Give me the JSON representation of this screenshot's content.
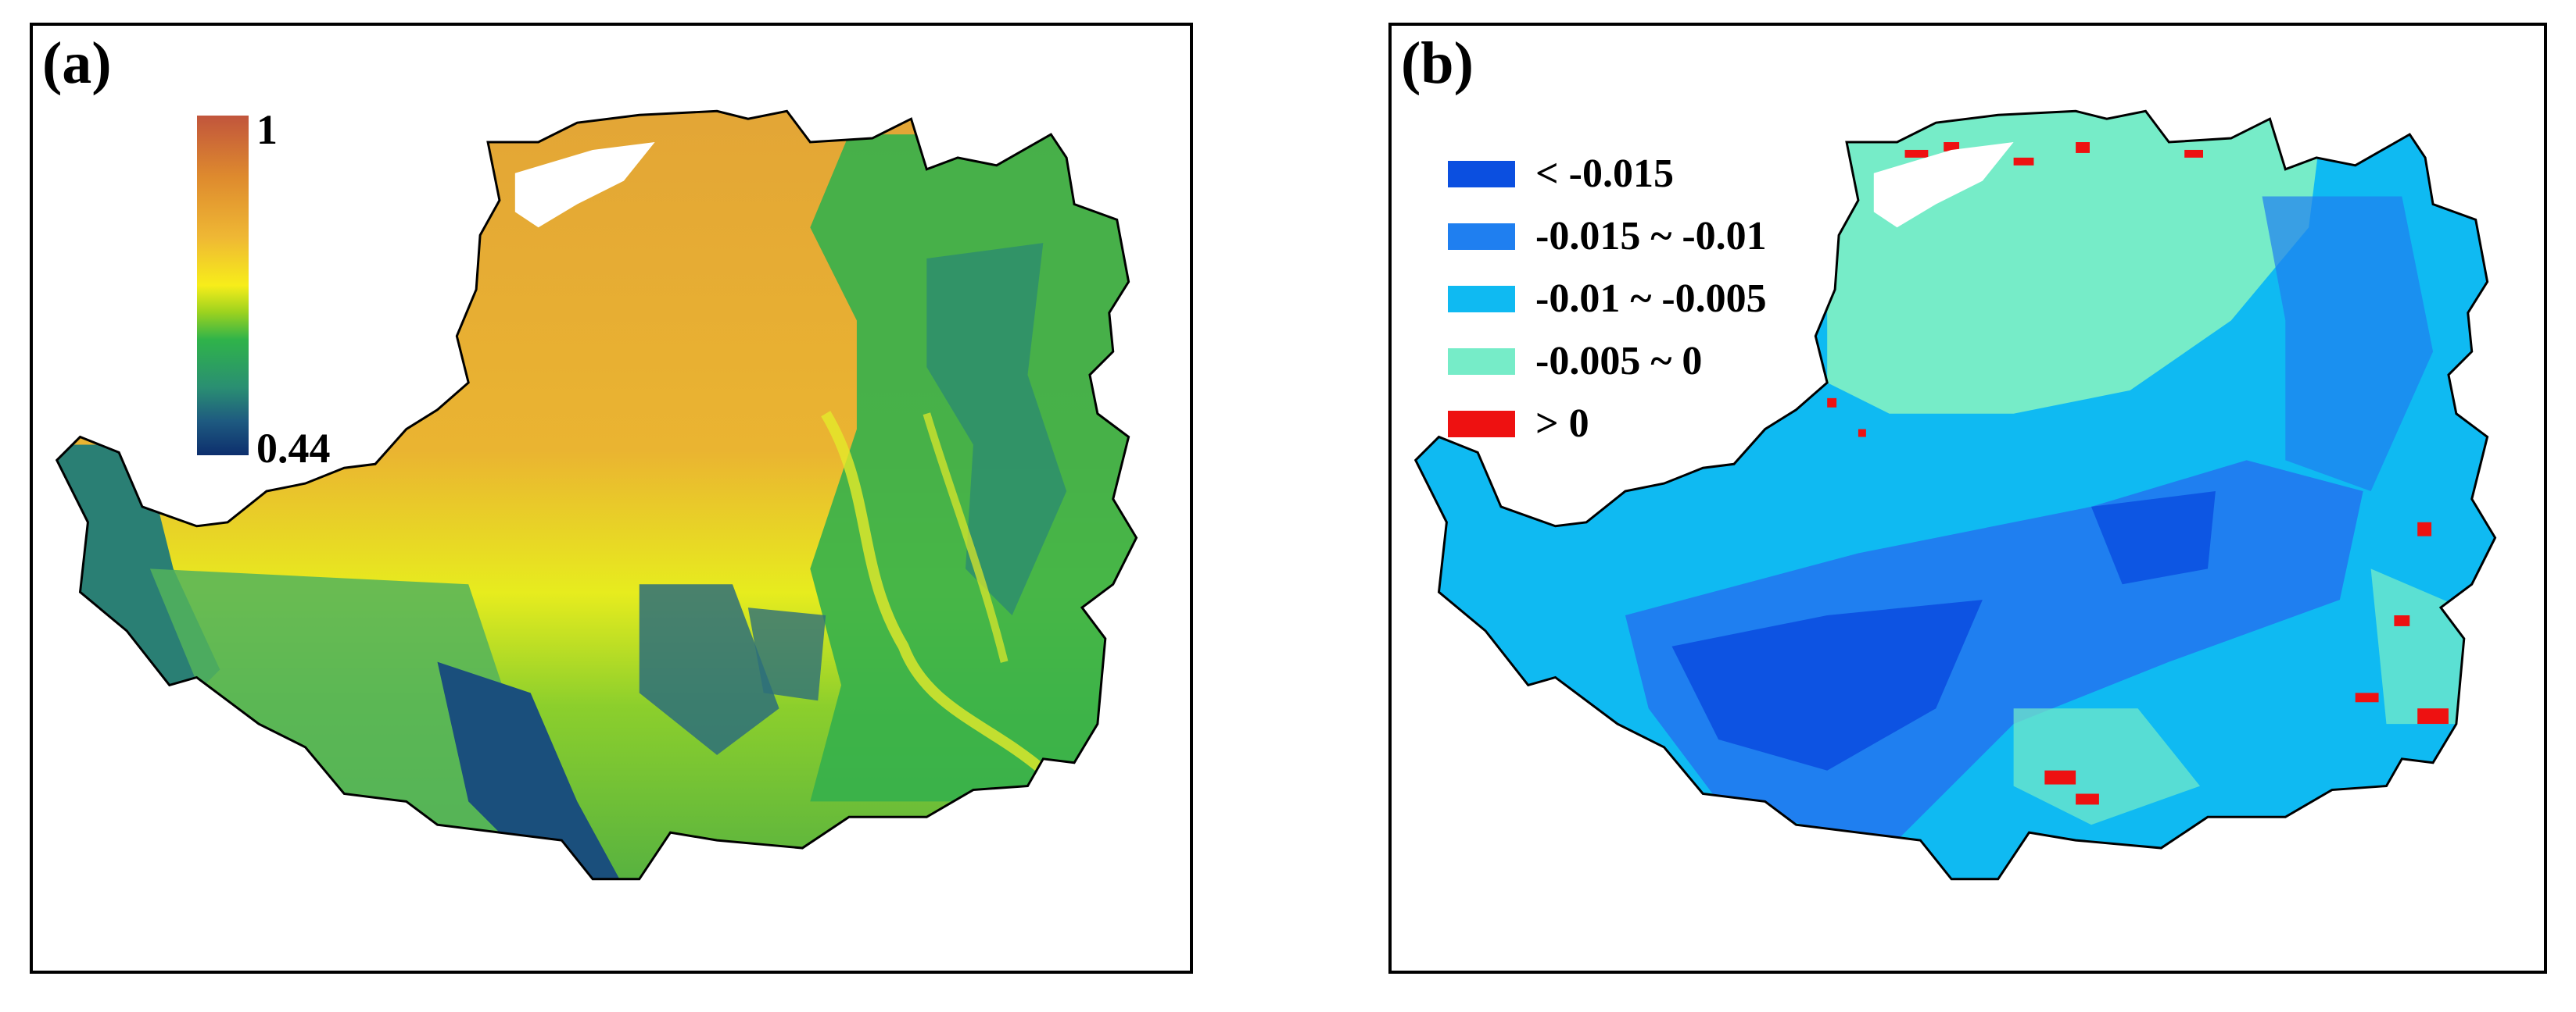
{
  "panels": [
    {
      "id": "a",
      "label": "(a)",
      "colorbar": {
        "max_label": "1",
        "min_label": "0.44",
        "colors": [
          "#c1553c",
          "#de8a2e",
          "#efb834",
          "#f7ed1a",
          "#9bd21f",
          "#2fb34a",
          "#2a8f72",
          "#1e5a80",
          "#0d2f6d"
        ]
      }
    },
    {
      "id": "b",
      "label": "(b)",
      "legend": [
        {
          "label": "< -0.015",
          "color": "#0b4fe0"
        },
        {
          "label": "-0.015 ~ -0.01",
          "color": "#1f7ff0"
        },
        {
          "label": "-0.01 ~ -0.005",
          "color": "#0fbaf2"
        },
        {
          "label": "-0.005 ~ 0",
          "color": "#76ecc8"
        },
        {
          "label": "> 0",
          "color": "#ee1111"
        }
      ]
    }
  ]
}
